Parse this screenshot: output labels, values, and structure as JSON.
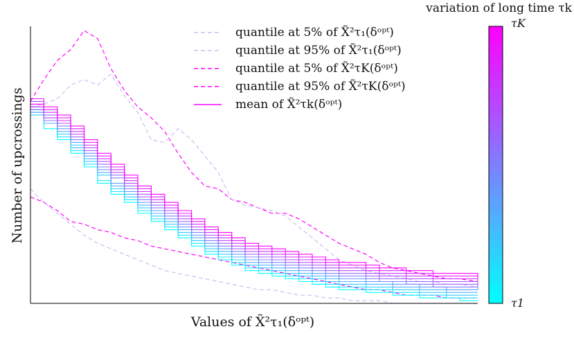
{
  "chart_data": {
    "type": "line",
    "title": "",
    "xlabel": "Values of X̃²τ₁(δᵒᵖᵗ)",
    "ylabel": "Number of upcrossings",
    "colorbar": {
      "title": "variation of long time τk",
      "top_label": "τK",
      "bottom_label": "τ1",
      "color_top": "#ff00ff",
      "color_bottom": "#00ffff"
    },
    "legend": {
      "placement": "top-center",
      "entries": [
        {
          "label": "quantile at 5% of X̃²τ₁(δᵒᵖᵗ)",
          "style": "dashed",
          "color": "#c8c0f0"
        },
        {
          "label": "quantile at 95% of X̃²τ₁(δᵒᵖᵗ)",
          "style": "dashed",
          "color": "#c8c0f0"
        },
        {
          "label": "quantile at 5% of X̃²τK(δᵒᵖᵗ)",
          "style": "dashed",
          "color": "#ff00ff"
        },
        {
          "label": "quantile at 95% of X̃²τK(δᵒᵖᵗ)",
          "style": "dashed",
          "color": "#ff00ff"
        },
        {
          "label": "mean of X̃²τk(δᵒᵖᵗ)",
          "style": "solid",
          "color": "#ff00ff"
        }
      ]
    },
    "grid": false,
    "xlim": [
      0,
      1
    ],
    "ylim": [
      0,
      1
    ],
    "x": [
      0.0,
      0.03,
      0.06,
      0.09,
      0.12,
      0.15,
      0.18,
      0.21,
      0.24,
      0.27,
      0.3,
      0.33,
      0.36,
      0.39,
      0.42,
      0.45,
      0.48,
      0.51,
      0.54,
      0.57,
      0.6,
      0.63,
      0.66,
      0.69,
      0.72,
      0.75,
      0.78,
      0.81,
      0.84,
      0.87,
      0.9,
      0.93,
      0.96,
      1.0
    ],
    "quantile_series": [
      {
        "name": "quantile at 95% of X̃²τK(δᵒᵖᵗ)",
        "color": "#ff00ff",
        "dash": true,
        "values": [
          0.74,
          0.82,
          0.89,
          0.93,
          1.0,
          0.97,
          0.86,
          0.78,
          0.72,
          0.68,
          0.63,
          0.55,
          0.48,
          0.43,
          0.42,
          0.38,
          0.37,
          0.35,
          0.33,
          0.33,
          0.31,
          0.28,
          0.25,
          0.22,
          0.2,
          0.18,
          0.15,
          0.13,
          0.12,
          0.11,
          0.1,
          0.09,
          0.09,
          0.08
        ]
      },
      {
        "name": "quantile at 95% of X̃²τ₁(δᵒᵖᵗ)",
        "color": "#c8c0f0",
        "dash": true,
        "values": [
          0.72,
          0.73,
          0.75,
          0.8,
          0.82,
          0.8,
          0.84,
          0.76,
          0.7,
          0.6,
          0.59,
          0.64,
          0.6,
          0.54,
          0.48,
          0.38,
          0.36,
          0.35,
          0.34,
          0.32,
          0.28,
          0.24,
          0.2,
          0.16,
          0.14,
          0.12,
          0.11,
          0.1,
          0.09,
          0.08,
          0.08,
          0.07,
          0.07,
          0.06
        ]
      },
      {
        "name": "quantile at 5% of X̃²τK(δᵒᵖᵗ)",
        "color": "#ff00ff",
        "dash": true,
        "values": [
          0.39,
          0.37,
          0.34,
          0.3,
          0.29,
          0.27,
          0.26,
          0.24,
          0.23,
          0.21,
          0.2,
          0.19,
          0.18,
          0.17,
          0.16,
          0.15,
          0.14,
          0.13,
          0.12,
          0.11,
          0.1,
          0.09,
          0.08,
          0.07,
          0.06,
          0.05,
          0.05,
          0.04,
          0.03,
          0.03,
          0.03,
          0.02,
          0.02,
          0.02
        ]
      },
      {
        "name": "quantile at 5% of X̃²τ₁(δᵒᵖᵗ)",
        "color": "#c8c0f0",
        "dash": true,
        "values": [
          0.42,
          0.37,
          0.33,
          0.29,
          0.25,
          0.22,
          0.2,
          0.18,
          0.16,
          0.14,
          0.12,
          0.11,
          0.1,
          0.09,
          0.08,
          0.07,
          0.06,
          0.05,
          0.05,
          0.04,
          0.03,
          0.03,
          0.02,
          0.02,
          0.01,
          0.01,
          0.01,
          0.0,
          0.0,
          0.0,
          0.0,
          0.0,
          0.0,
          0.0
        ]
      }
    ],
    "mean_series": [
      {
        "t": 0.0,
        "values": [
          0.7,
          0.64,
          0.6,
          0.55,
          0.5,
          0.44,
          0.4,
          0.37,
          0.33,
          0.3,
          0.27,
          0.24,
          0.21,
          0.18,
          0.16,
          0.14,
          0.12,
          0.11,
          0.1,
          0.09,
          0.08,
          0.07,
          0.06,
          0.05,
          0.05,
          0.04,
          0.04,
          0.03,
          0.03,
          0.02,
          0.02,
          0.02,
          0.01,
          0.01
        ]
      },
      {
        "t": 0.1,
        "values": [
          0.71,
          0.66,
          0.61,
          0.56,
          0.51,
          0.45,
          0.41,
          0.38,
          0.34,
          0.31,
          0.28,
          0.25,
          0.22,
          0.19,
          0.17,
          0.15,
          0.13,
          0.12,
          0.11,
          0.1,
          0.09,
          0.08,
          0.07,
          0.06,
          0.06,
          0.05,
          0.05,
          0.04,
          0.04,
          0.03,
          0.03,
          0.02,
          0.02,
          0.02
        ]
      },
      {
        "t": 0.2,
        "values": [
          0.69,
          0.67,
          0.62,
          0.58,
          0.52,
          0.47,
          0.42,
          0.39,
          0.35,
          0.32,
          0.29,
          0.26,
          0.23,
          0.2,
          0.18,
          0.16,
          0.14,
          0.13,
          0.12,
          0.11,
          0.1,
          0.09,
          0.08,
          0.07,
          0.07,
          0.06,
          0.06,
          0.05,
          0.05,
          0.04,
          0.04,
          0.03,
          0.03,
          0.03
        ]
      },
      {
        "t": 0.3,
        "values": [
          0.72,
          0.66,
          0.63,
          0.57,
          0.53,
          0.48,
          0.43,
          0.4,
          0.36,
          0.33,
          0.3,
          0.27,
          0.24,
          0.21,
          0.19,
          0.17,
          0.15,
          0.14,
          0.13,
          0.12,
          0.11,
          0.1,
          0.09,
          0.08,
          0.08,
          0.07,
          0.07,
          0.06,
          0.06,
          0.05,
          0.05,
          0.04,
          0.04,
          0.04
        ]
      },
      {
        "t": 0.4,
        "values": [
          0.7,
          0.68,
          0.64,
          0.59,
          0.54,
          0.49,
          0.44,
          0.41,
          0.37,
          0.34,
          0.31,
          0.28,
          0.25,
          0.22,
          0.2,
          0.18,
          0.16,
          0.15,
          0.14,
          0.13,
          0.12,
          0.11,
          0.1,
          0.09,
          0.09,
          0.08,
          0.08,
          0.07,
          0.07,
          0.06,
          0.06,
          0.05,
          0.05,
          0.05
        ]
      },
      {
        "t": 0.5,
        "values": [
          0.73,
          0.67,
          0.65,
          0.6,
          0.55,
          0.5,
          0.46,
          0.42,
          0.38,
          0.35,
          0.32,
          0.29,
          0.26,
          0.23,
          0.21,
          0.19,
          0.17,
          0.16,
          0.15,
          0.14,
          0.13,
          0.12,
          0.11,
          0.1,
          0.1,
          0.09,
          0.08,
          0.08,
          0.07,
          0.07,
          0.06,
          0.06,
          0.06,
          0.05
        ]
      },
      {
        "t": 0.6,
        "values": [
          0.71,
          0.69,
          0.66,
          0.61,
          0.56,
          0.51,
          0.47,
          0.43,
          0.39,
          0.36,
          0.33,
          0.3,
          0.27,
          0.24,
          0.22,
          0.2,
          0.18,
          0.17,
          0.16,
          0.15,
          0.14,
          0.13,
          0.12,
          0.11,
          0.11,
          0.1,
          0.09,
          0.09,
          0.08,
          0.08,
          0.07,
          0.07,
          0.07,
          0.06
        ]
      },
      {
        "t": 0.7,
        "values": [
          0.74,
          0.68,
          0.66,
          0.62,
          0.57,
          0.52,
          0.48,
          0.44,
          0.4,
          0.37,
          0.34,
          0.31,
          0.28,
          0.25,
          0.23,
          0.21,
          0.19,
          0.18,
          0.17,
          0.16,
          0.15,
          0.14,
          0.13,
          0.12,
          0.12,
          0.11,
          0.1,
          0.1,
          0.09,
          0.09,
          0.08,
          0.08,
          0.08,
          0.07
        ]
      },
      {
        "t": 0.8,
        "values": [
          0.72,
          0.7,
          0.67,
          0.63,
          0.58,
          0.53,
          0.49,
          0.45,
          0.41,
          0.38,
          0.35,
          0.32,
          0.29,
          0.26,
          0.24,
          0.22,
          0.2,
          0.19,
          0.18,
          0.17,
          0.16,
          0.15,
          0.14,
          0.13,
          0.13,
          0.12,
          0.11,
          0.11,
          0.1,
          0.1,
          0.09,
          0.09,
          0.09,
          0.08
        ]
      },
      {
        "t": 0.9,
        "values": [
          0.75,
          0.71,
          0.68,
          0.64,
          0.59,
          0.54,
          0.5,
          0.46,
          0.42,
          0.39,
          0.36,
          0.33,
          0.3,
          0.27,
          0.25,
          0.23,
          0.21,
          0.2,
          0.19,
          0.18,
          0.17,
          0.16,
          0.15,
          0.14,
          0.14,
          0.13,
          0.12,
          0.12,
          0.11,
          0.11,
          0.1,
          0.1,
          0.1,
          0.09
        ]
      },
      {
        "t": 1.0,
        "values": [
          0.73,
          0.72,
          0.69,
          0.65,
          0.6,
          0.55,
          0.51,
          0.47,
          0.43,
          0.4,
          0.37,
          0.34,
          0.31,
          0.28,
          0.26,
          0.24,
          0.22,
          0.21,
          0.2,
          0.19,
          0.18,
          0.17,
          0.16,
          0.15,
          0.15,
          0.14,
          0.13,
          0.13,
          0.12,
          0.12,
          0.11,
          0.11,
          0.11,
          0.1
        ]
      }
    ]
  }
}
